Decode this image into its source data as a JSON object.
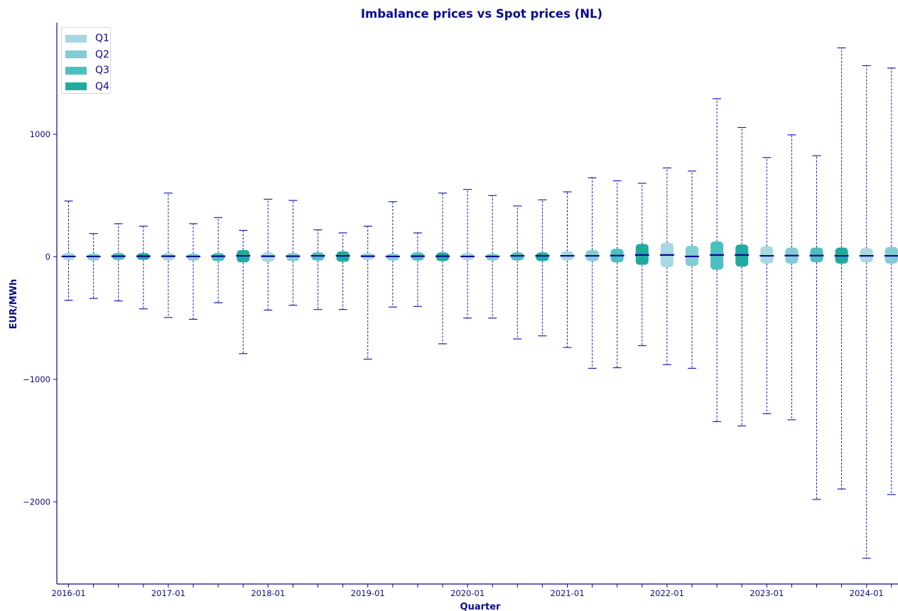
{
  "chart_data": {
    "type": "boxplot",
    "title": "Imbalance prices vs Spot prices (NL)",
    "xlabel": "Quarter",
    "ylabel": "EUR/MWh",
    "ylim": [
      -2670,
      1910
    ],
    "yticks": [
      1000,
      0,
      -1000,
      -2000
    ],
    "ytick_labels": [
      "1000",
      "0",
      "−1000",
      "−2000"
    ],
    "xtick_labels": [
      "2016-01",
      "2017-01",
      "2018-01",
      "2019-01",
      "2020-01",
      "2021-01",
      "2022-01",
      "2023-01",
      "2024-01"
    ],
    "legend": {
      "position": "top-left",
      "entries": [
        "Q1",
        "Q2",
        "Q3",
        "Q4"
      ]
    },
    "colors": {
      "Q1": "#a8d8e2",
      "Q2": "#84ccd4",
      "Q3": "#4cbfbf",
      "Q4": "#21aaa0",
      "axis": "#0b0b8c",
      "median": "#0b0b8c",
      "whisker": "#1d1db4"
    },
    "series": [
      {
        "quarter": "2016-Q1",
        "q": "Q1",
        "whislo": -355,
        "q1": -25,
        "med": 3,
        "q3": 30,
        "whishi": 455
      },
      {
        "quarter": "2016-Q2",
        "q": "Q2",
        "whislo": -340,
        "q1": -30,
        "med": 3,
        "q3": 25,
        "whishi": 190
      },
      {
        "quarter": "2016-Q3",
        "q": "Q3",
        "whislo": -360,
        "q1": -25,
        "med": 5,
        "q3": 30,
        "whishi": 270
      },
      {
        "quarter": "2016-Q4",
        "q": "Q4",
        "whislo": -425,
        "q1": -25,
        "med": 5,
        "q3": 30,
        "whishi": 250
      },
      {
        "quarter": "2017-Q1",
        "q": "Q1",
        "whislo": -495,
        "q1": -30,
        "med": 5,
        "q3": 30,
        "whishi": 520
      },
      {
        "quarter": "2017-Q2",
        "q": "Q2",
        "whislo": -510,
        "q1": -30,
        "med": 3,
        "q3": 25,
        "whishi": 270
      },
      {
        "quarter": "2017-Q3",
        "q": "Q3",
        "whislo": -375,
        "q1": -35,
        "med": 5,
        "q3": 30,
        "whishi": 320
      },
      {
        "quarter": "2017-Q4",
        "q": "Q4",
        "whislo": -790,
        "q1": -45,
        "med": 8,
        "q3": 55,
        "whishi": 215
      },
      {
        "quarter": "2018-Q1",
        "q": "Q1",
        "whislo": -435,
        "q1": -40,
        "med": 5,
        "q3": 35,
        "whishi": 470
      },
      {
        "quarter": "2018-Q2",
        "q": "Q2",
        "whislo": -395,
        "q1": -35,
        "med": 5,
        "q3": 30,
        "whishi": 460
      },
      {
        "quarter": "2018-Q3",
        "q": "Q3",
        "whislo": -430,
        "q1": -30,
        "med": 8,
        "q3": 35,
        "whishi": 220
      },
      {
        "quarter": "2018-Q4",
        "q": "Q4",
        "whislo": -430,
        "q1": -40,
        "med": 8,
        "q3": 45,
        "whishi": 195
      },
      {
        "quarter": "2019-Q1",
        "q": "Q1",
        "whislo": -835,
        "q1": -25,
        "med": 5,
        "q3": 30,
        "whishi": 250
      },
      {
        "quarter": "2019-Q2",
        "q": "Q2",
        "whislo": -410,
        "q1": -30,
        "med": 3,
        "q3": 25,
        "whishi": 450
      },
      {
        "quarter": "2019-Q3",
        "q": "Q3",
        "whislo": -405,
        "q1": -30,
        "med": 5,
        "q3": 35,
        "whishi": 195
      },
      {
        "quarter": "2019-Q4",
        "q": "Q4",
        "whislo": -710,
        "q1": -35,
        "med": 5,
        "q3": 35,
        "whishi": 520
      },
      {
        "quarter": "2020-Q1",
        "q": "Q1",
        "whislo": -500,
        "q1": -25,
        "med": 3,
        "q3": 30,
        "whishi": 550
      },
      {
        "quarter": "2020-Q2",
        "q": "Q2",
        "whislo": -500,
        "q1": -30,
        "med": 3,
        "q3": 25,
        "whishi": 500
      },
      {
        "quarter": "2020-Q3",
        "q": "Q3",
        "whislo": -670,
        "q1": -30,
        "med": 8,
        "q3": 35,
        "whishi": 415
      },
      {
        "quarter": "2020-Q4",
        "q": "Q4",
        "whislo": -645,
        "q1": -35,
        "med": 8,
        "q3": 35,
        "whishi": 465
      },
      {
        "quarter": "2021-Q1",
        "q": "Q1",
        "whislo": -740,
        "q1": -30,
        "med": 8,
        "q3": 45,
        "whishi": 530
      },
      {
        "quarter": "2021-Q2",
        "q": "Q2",
        "whislo": -910,
        "q1": -35,
        "med": 8,
        "q3": 55,
        "whishi": 645
      },
      {
        "quarter": "2021-Q3",
        "q": "Q3",
        "whislo": -905,
        "q1": -45,
        "med": 10,
        "q3": 65,
        "whishi": 620
      },
      {
        "quarter": "2021-Q4",
        "q": "Q4",
        "whislo": -725,
        "q1": -65,
        "med": 15,
        "q3": 105,
        "whishi": 600
      },
      {
        "quarter": "2022-Q1",
        "q": "Q1",
        "whislo": -880,
        "q1": -85,
        "med": 15,
        "q3": 115,
        "whishi": 725
      },
      {
        "quarter": "2022-Q2",
        "q": "Q2",
        "whislo": -910,
        "q1": -75,
        "med": 3,
        "q3": 90,
        "whishi": 700
      },
      {
        "quarter": "2022-Q3",
        "q": "Q3",
        "whislo": -1345,
        "q1": -105,
        "med": 15,
        "q3": 125,
        "whishi": 1290
      },
      {
        "quarter": "2022-Q4",
        "q": "Q4",
        "whislo": -1380,
        "q1": -80,
        "med": 15,
        "q3": 100,
        "whishi": 1055
      },
      {
        "quarter": "2023-Q1",
        "q": "Q1",
        "whislo": -1280,
        "q1": -55,
        "med": 8,
        "q3": 85,
        "whishi": 810
      },
      {
        "quarter": "2023-Q2",
        "q": "Q2",
        "whislo": -1330,
        "q1": -55,
        "med": 10,
        "q3": 75,
        "whishi": 995
      },
      {
        "quarter": "2023-Q3",
        "q": "Q3",
        "whislo": -1980,
        "q1": -45,
        "med": 10,
        "q3": 75,
        "whishi": 825
      },
      {
        "quarter": "2023-Q4",
        "q": "Q4",
        "whislo": -1895,
        "q1": -55,
        "med": 8,
        "q3": 75,
        "whishi": 1705
      },
      {
        "quarter": "2024-Q1",
        "q": "Q1",
        "whislo": -2460,
        "q1": -45,
        "med": 8,
        "q3": 70,
        "whishi": 1560
      },
      {
        "quarter": "2024-Q2",
        "q": "Q2",
        "whislo": -1940,
        "q1": -55,
        "med": 8,
        "q3": 80,
        "whishi": 1540
      }
    ]
  }
}
